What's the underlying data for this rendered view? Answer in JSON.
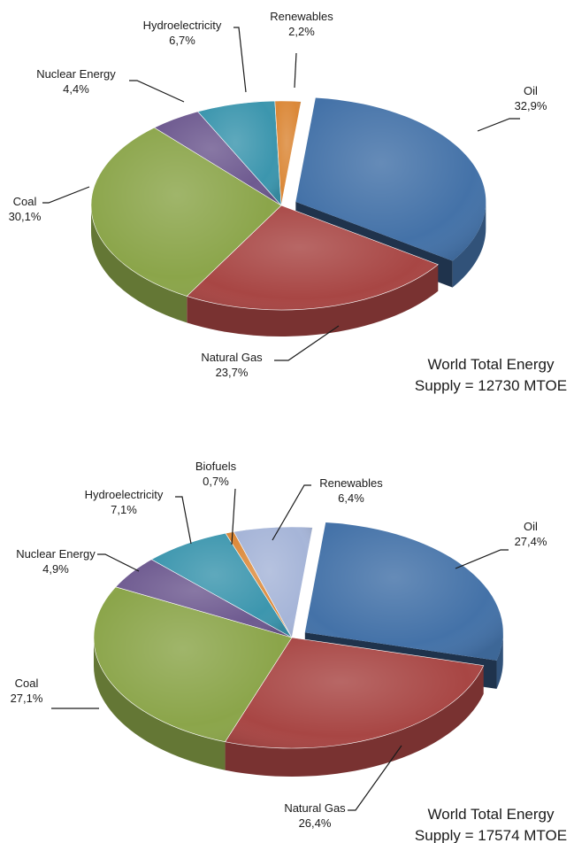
{
  "chart_data": [
    {
      "type": "pie",
      "style": "3d-exploded",
      "caption_line1": "World Total Energy",
      "caption_line2": "Supply = 12730 MTOE",
      "slices": [
        {
          "name": "Oil",
          "pct_text": "32,9%",
          "value": 32.9,
          "color": "#4472A8",
          "exploded": true
        },
        {
          "name": "Natural Gas",
          "pct_text": "23,7%",
          "value": 23.7,
          "color": "#A84644"
        },
        {
          "name": "Coal",
          "pct_text": "30,1%",
          "value": 30.1,
          "color": "#8BA54A"
        },
        {
          "name": "Nuclear Energy",
          "pct_text": "4,4%",
          "value": 4.4,
          "color": "#6E5A90"
        },
        {
          "name": "Hydroelectricity",
          "pct_text": "6,7%",
          "value": 6.7,
          "color": "#3C96AE"
        },
        {
          "name": "Renewables",
          "pct_text": "2,2%",
          "value": 2.2,
          "color": "#DB8838"
        }
      ]
    },
    {
      "type": "pie",
      "style": "3d-exploded",
      "caption_line1": "World Total Energy",
      "caption_line2": "Supply = 17574 MTOE",
      "slices": [
        {
          "name": "Oil",
          "pct_text": "27,4%",
          "value": 27.4,
          "color": "#4472A8",
          "exploded": true
        },
        {
          "name": "Natural Gas",
          "pct_text": "26,4%",
          "value": 26.4,
          "color": "#A84644"
        },
        {
          "name": "Coal",
          "pct_text": "27,1%",
          "value": 27.1,
          "color": "#8BA54A"
        },
        {
          "name": "Nuclear Energy",
          "pct_text": "4,9%",
          "value": 4.9,
          "color": "#6E5A90"
        },
        {
          "name": "Hydroelectricity",
          "pct_text": "7,1%",
          "value": 7.1,
          "color": "#3C96AE"
        },
        {
          "name": "Biofuels",
          "pct_text": "0,7%",
          "value": 0.7,
          "color": "#DB8838"
        },
        {
          "name": "Renewables",
          "pct_text": "6,4%",
          "value": 6.4,
          "color": "#A6B5D8"
        }
      ]
    }
  ]
}
